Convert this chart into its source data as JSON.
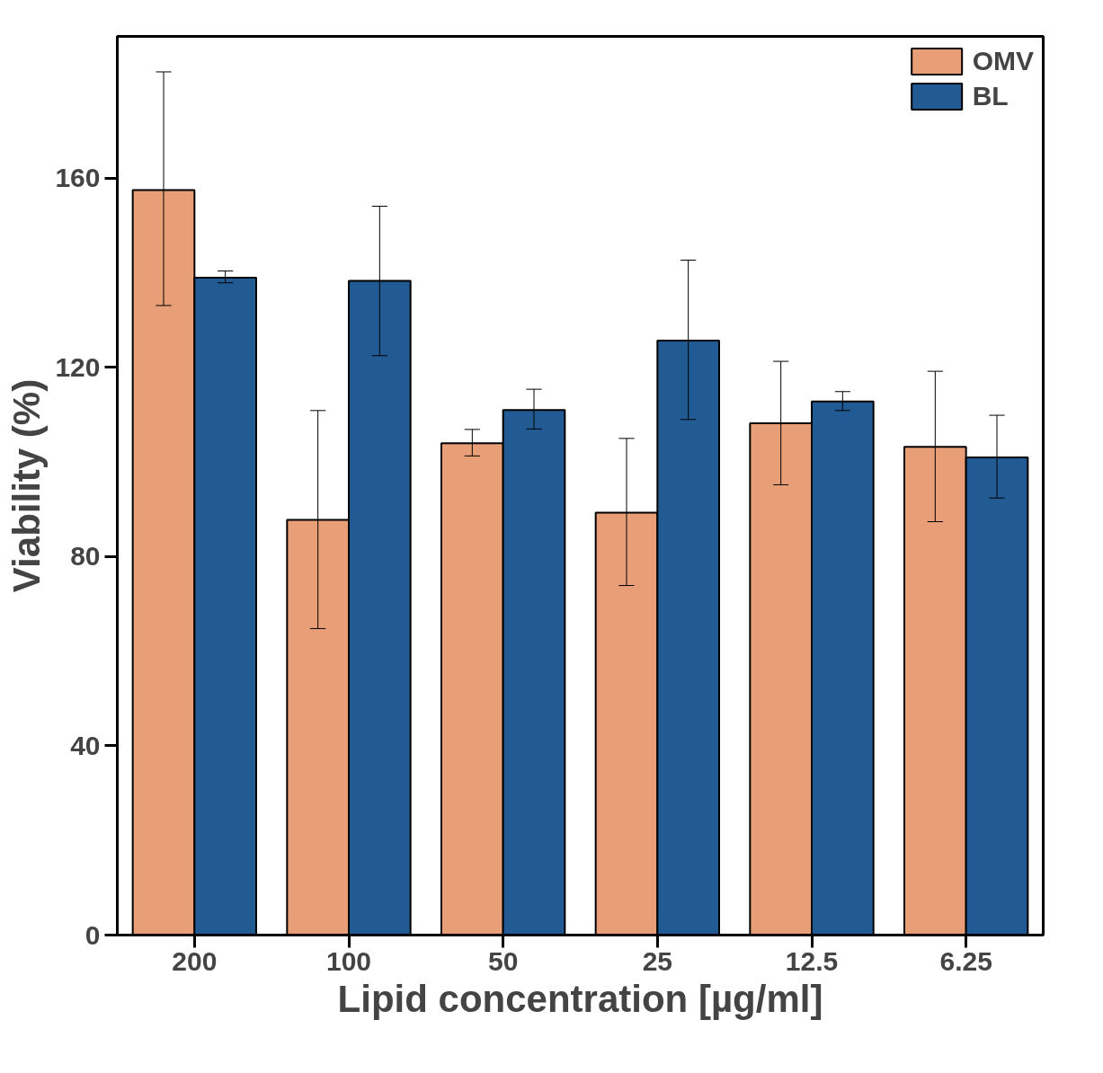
{
  "chart_data": {
    "type": "bar",
    "xlabel": "Lipid concentration [µg/ml]",
    "ylabel": "Viability (%)",
    "categories": [
      "200",
      "100",
      "50",
      "25",
      "12.5",
      "6.25"
    ],
    "series": [
      {
        "name": "OMV",
        "color": "#e89e76",
        "values": [
          157.5,
          87.8,
          104.0,
          89.3,
          108.2,
          103.2
        ],
        "errors": [
          [
            133.1,
            182.5
          ],
          [
            64.8,
            110.9
          ],
          [
            101.3,
            106.9
          ],
          [
            73.9,
            105.0
          ],
          [
            95.2,
            121.3
          ],
          [
            87.4,
            119.2
          ]
        ]
      },
      {
        "name": "BL",
        "color": "#225b94",
        "values": [
          139.0,
          138.3,
          111.0,
          125.7,
          112.8,
          101.0
        ],
        "errors": [
          [
            137.9,
            140.4
          ],
          [
            122.5,
            154.1
          ],
          [
            107.0,
            115.4
          ],
          [
            109.0,
            142.7
          ],
          [
            110.9,
            114.9
          ],
          [
            92.4,
            109.9
          ]
        ]
      }
    ],
    "ylim": [
      0,
      190
    ],
    "yticks": [
      0,
      40,
      80,
      120,
      160
    ],
    "grid": false,
    "legend": "top right"
  }
}
